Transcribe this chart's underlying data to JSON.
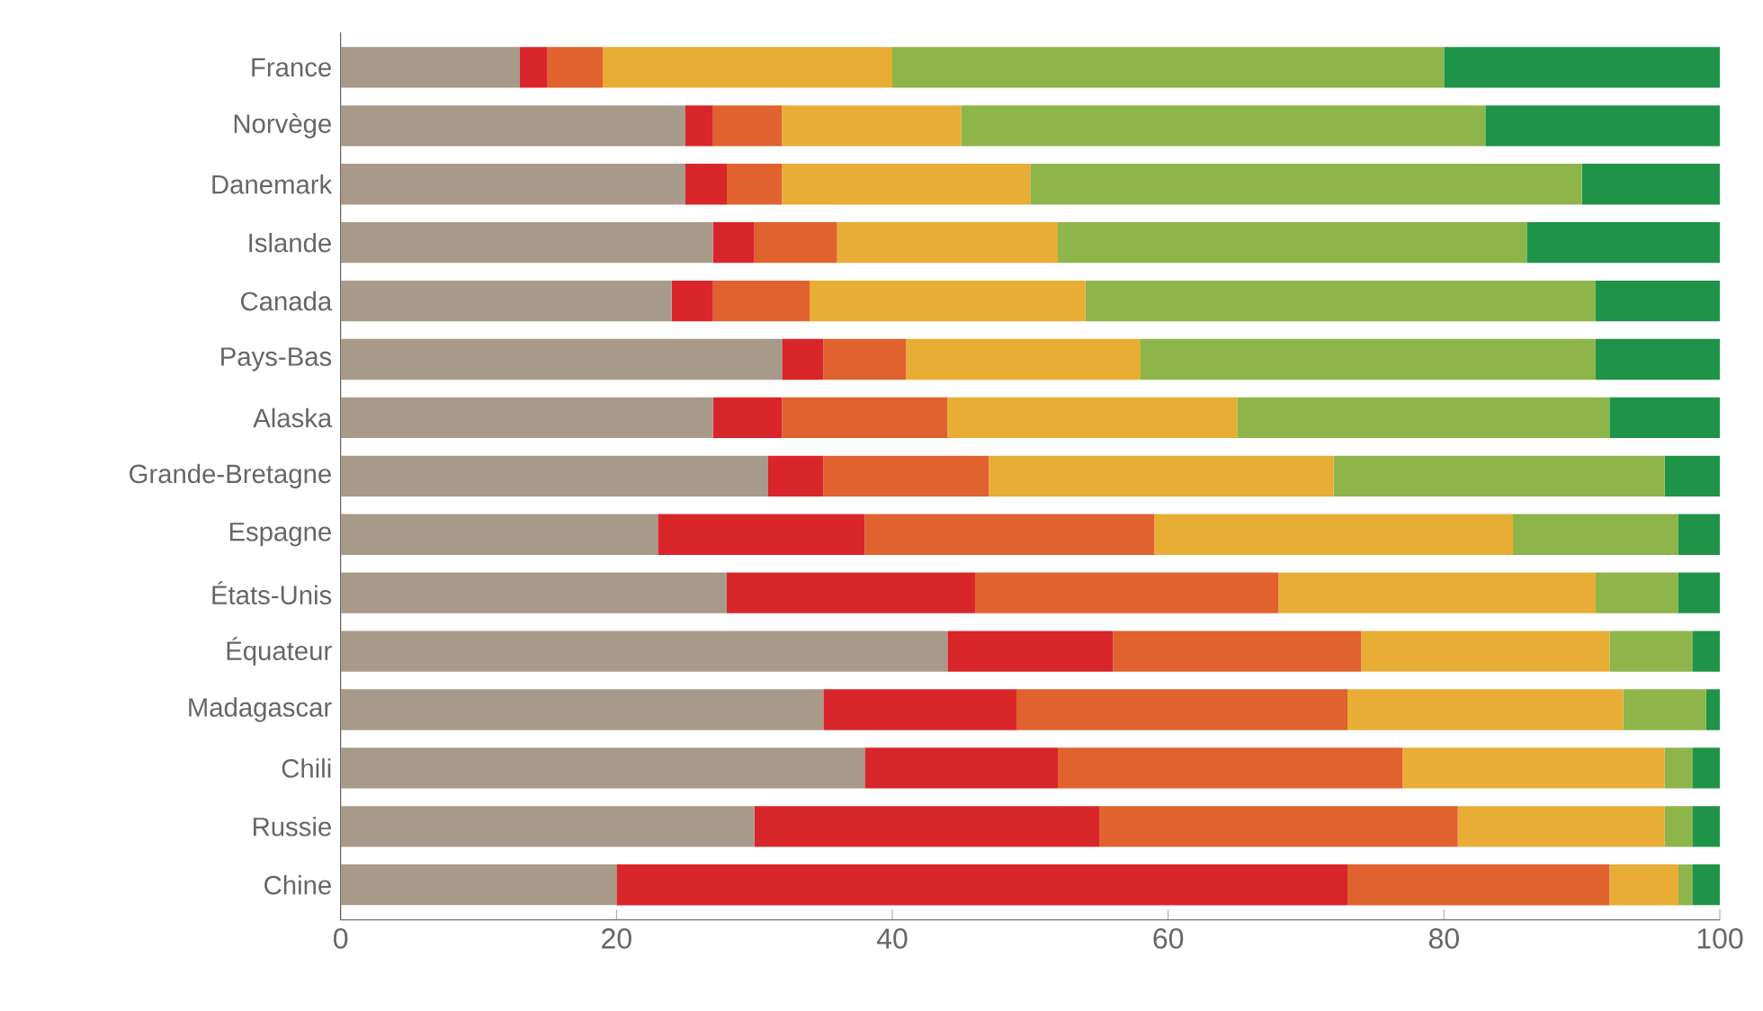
{
  "chart_data": {
    "type": "bar",
    "orientation": "horizontal",
    "stacked": true,
    "categories": [
      "France",
      "Norvège",
      "Danemark",
      "Islande",
      "Canada",
      "Pays-Bas",
      "Alaska",
      "Grande-Bretagne",
      "Espagne",
      "États-Unis",
      "Équateur",
      "Madagascar",
      "Chili",
      "Russie",
      "Chine"
    ],
    "series": [
      {
        "color": "#a89a88",
        "values": [
          13,
          25,
          25,
          27,
          24,
          32,
          27,
          31,
          23,
          28,
          44,
          35,
          38,
          30,
          20
        ]
      },
      {
        "color": "#d9262a",
        "values": [
          2,
          2,
          3,
          3,
          3,
          3,
          5,
          4,
          15,
          18,
          12,
          14,
          14,
          25,
          53
        ]
      },
      {
        "color": "#e0622e",
        "values": [
          4,
          5,
          4,
          6,
          7,
          6,
          12,
          12,
          21,
          22,
          18,
          24,
          25,
          26,
          19
        ]
      },
      {
        "color": "#e8ad35",
        "values": [
          21,
          13,
          18,
          16,
          20,
          17,
          21,
          25,
          26,
          23,
          18,
          20,
          19,
          15,
          5
        ]
      },
      {
        "color": "#8db54a",
        "values": [
          40,
          38,
          40,
          34,
          37,
          33,
          27,
          24,
          12,
          6,
          6,
          6,
          2,
          2,
          1
        ]
      },
      {
        "color": "#1f9448",
        "values": [
          20,
          17,
          10,
          14,
          9,
          9,
          8,
          4,
          3,
          3,
          2,
          1,
          2,
          2,
          2
        ]
      }
    ],
    "xlim": [
      0,
      100
    ],
    "xticks": [
      0,
      20,
      40,
      60,
      80,
      100
    ],
    "grid": false
  }
}
